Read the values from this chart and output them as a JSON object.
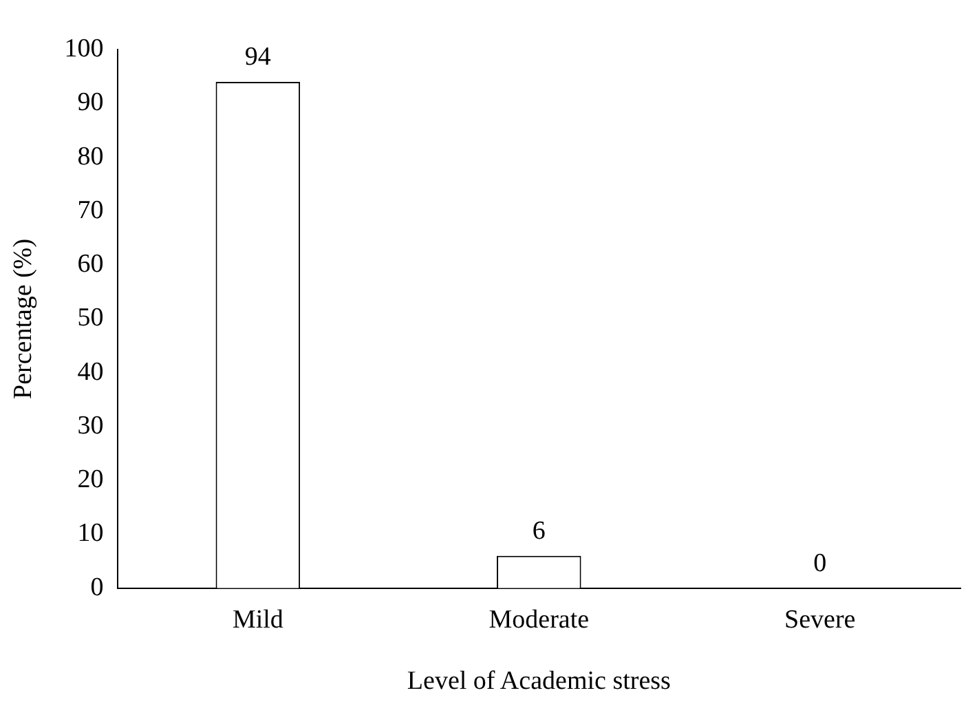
{
  "chart_data": {
    "type": "bar",
    "xlabel": "Level of Academic stress",
    "ylabel": "Percentage (%)",
    "categories": [
      "Mild",
      "Moderate",
      "Severe"
    ],
    "values": [
      94,
      6,
      0
    ],
    "color": "#ffffff",
    "ylim": [
      0,
      100
    ],
    "yticks": [
      0,
      10,
      20,
      30,
      40,
      50,
      60,
      70,
      80,
      90,
      100
    ],
    "grid": false,
    "legend": false,
    "data_labels": true
  }
}
